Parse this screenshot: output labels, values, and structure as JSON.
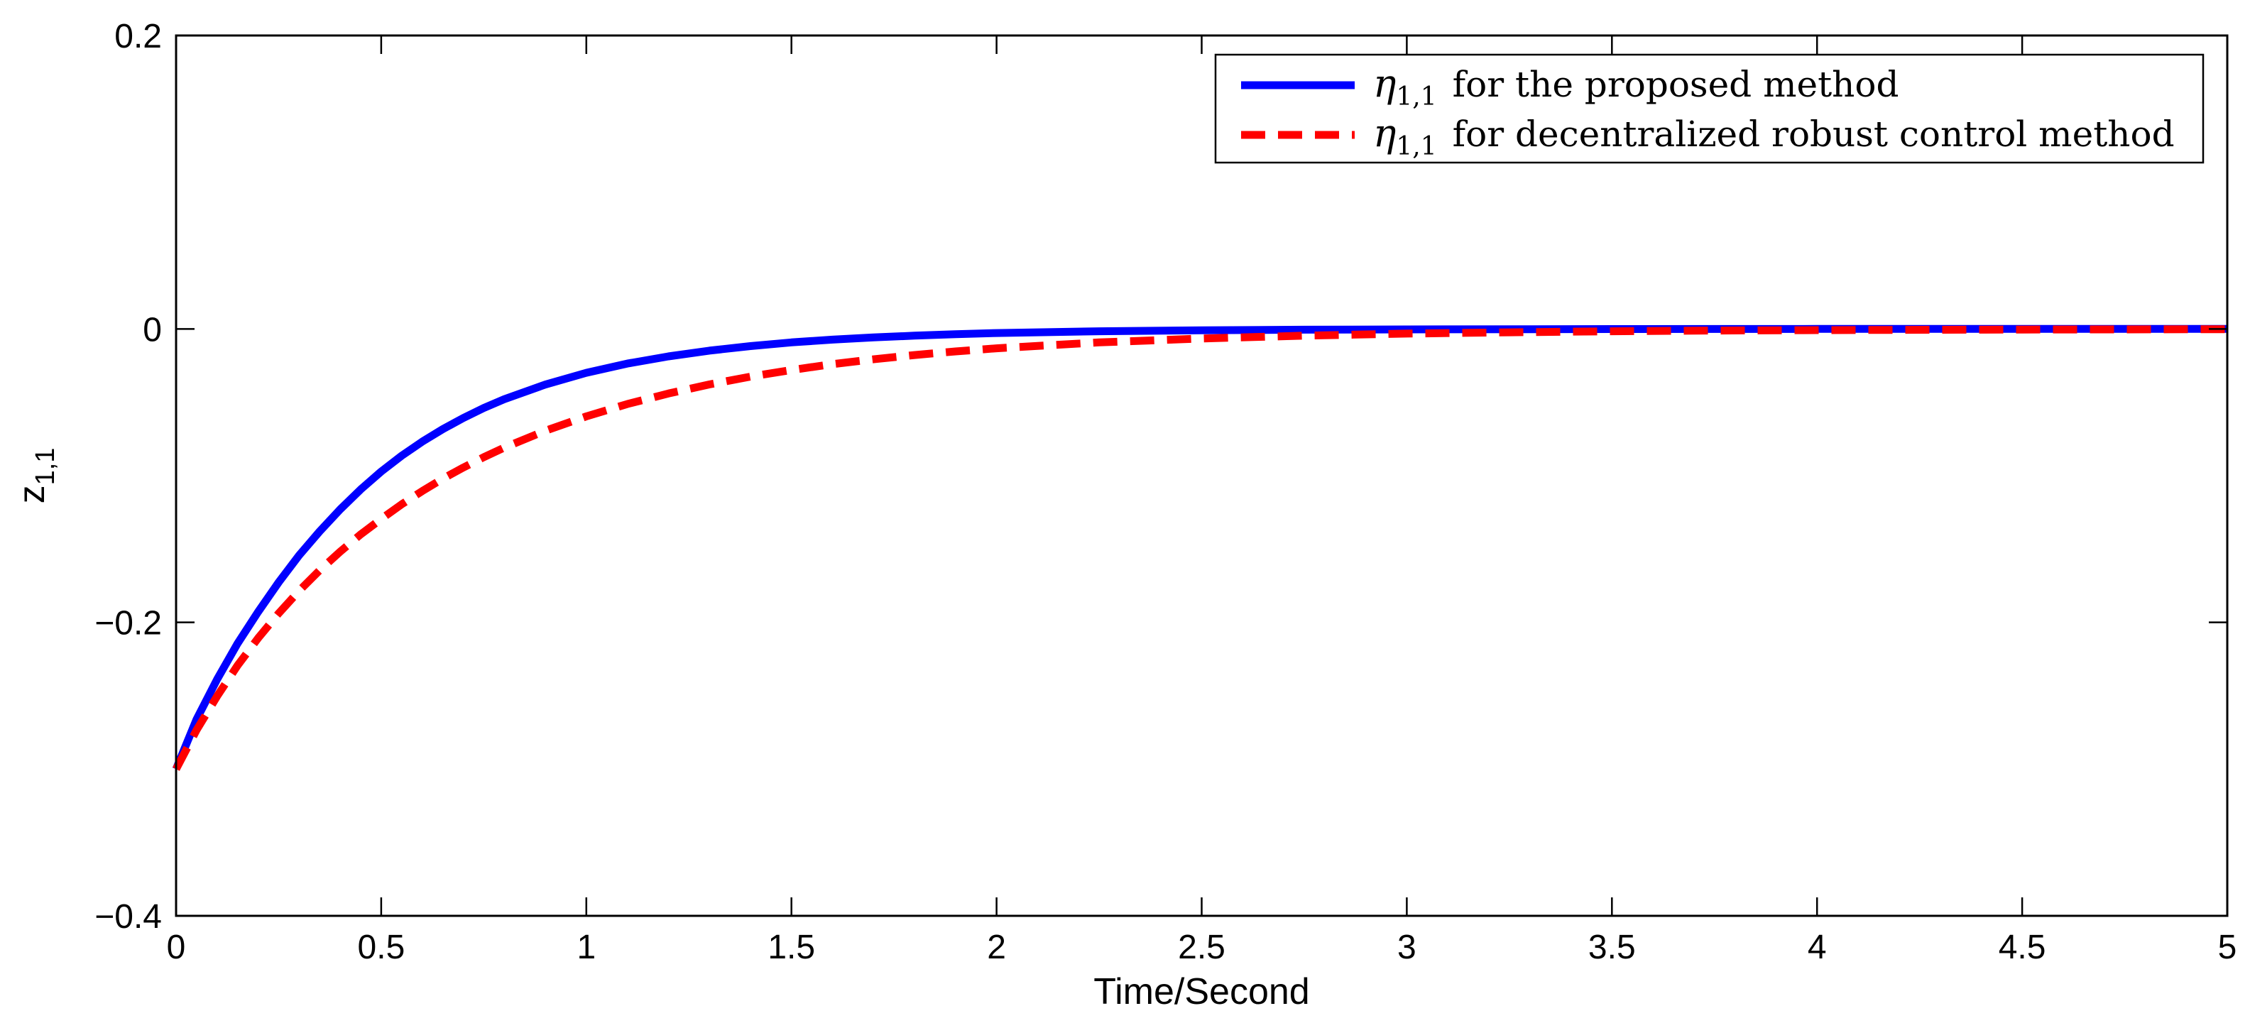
{
  "chart_data": {
    "type": "line",
    "title": "",
    "xlabel": "Time/Second",
    "ylabel_main": "z",
    "ylabel_sub": "1,1",
    "xlim": [
      0,
      5
    ],
    "ylim": [
      -0.4,
      0.2
    ],
    "xticks": [
      0,
      0.5,
      1,
      1.5,
      2,
      2.5,
      3,
      3.5,
      4,
      4.5,
      5
    ],
    "xtick_labels": [
      "0",
      "0.5",
      "1",
      "1.5",
      "2",
      "2.5",
      "3",
      "3.5",
      "4",
      "4.5",
      "5"
    ],
    "yticks": [
      -0.4,
      -0.2,
      0,
      0.2
    ],
    "ytick_labels": [
      "−0.4",
      "−0.2",
      "0",
      "0.2"
    ],
    "grid": false,
    "legend_position": "top-right",
    "series": [
      {
        "name": "η_{1,1} for the proposed method",
        "legend_symbol": "η",
        "legend_sub": "1,1",
        "legend_text": "for the proposed method",
        "color": "#0000ff",
        "style": "solid",
        "x": [
          0,
          0.05,
          0.1,
          0.15,
          0.2,
          0.25,
          0.3,
          0.35,
          0.4,
          0.45,
          0.5,
          0.55,
          0.6,
          0.65,
          0.7,
          0.75,
          0.8,
          0.9,
          1.0,
          1.1,
          1.2,
          1.3,
          1.4,
          1.5,
          1.6,
          1.7,
          1.8,
          1.9,
          2.0,
          2.25,
          2.5,
          2.75,
          3.0,
          3.5,
          4.0,
          4.5,
          5.0
        ],
        "y": [
          -0.3,
          -0.266,
          -0.2388,
          -0.2143,
          -0.1928,
          -0.1727,
          -0.1543,
          -0.138,
          -0.123,
          -0.1094,
          -0.0972,
          -0.0864,
          -0.0768,
          -0.0683,
          -0.0607,
          -0.0539,
          -0.0479,
          -0.0379,
          -0.0299,
          -0.0236,
          -0.0187,
          -0.0148,
          -0.0117,
          -0.0092,
          -0.0073,
          -0.0058,
          -0.0046,
          -0.0036,
          -0.0028,
          -0.0016,
          -0.0009,
          -0.0005,
          -0.0003,
          -0.0001,
          0,
          0,
          0
        ]
      },
      {
        "name": "η_{1,1} for decentralized robust control method",
        "legend_symbol": "η",
        "legend_sub": "1,1",
        "legend_text": "for decentralized robust control method",
        "color": "#ff0000",
        "style": "dashed",
        "x": [
          0,
          0.05,
          0.1,
          0.15,
          0.2,
          0.25,
          0.3,
          0.35,
          0.4,
          0.45,
          0.5,
          0.55,
          0.6,
          0.65,
          0.7,
          0.75,
          0.8,
          0.9,
          1.0,
          1.1,
          1.2,
          1.3,
          1.4,
          1.5,
          1.6,
          1.7,
          1.8,
          1.9,
          2.0,
          2.25,
          2.5,
          2.75,
          3.0,
          3.25,
          3.5,
          3.75,
          4.0,
          4.5,
          5.0
        ],
        "y": [
          -0.3,
          -0.2733,
          -0.2503,
          -0.2293,
          -0.2107,
          -0.1938,
          -0.1785,
          -0.1645,
          -0.1518,
          -0.14,
          -0.1295,
          -0.1195,
          -0.1105,
          -0.1021,
          -0.0945,
          -0.0874,
          -0.0809,
          -0.0694,
          -0.0596,
          -0.0512,
          -0.044,
          -0.0378,
          -0.0325,
          -0.028,
          -0.024,
          -0.0207,
          -0.0178,
          -0.0153,
          -0.0132,
          -0.0092,
          -0.0065,
          -0.0046,
          -0.0032,
          -0.0023,
          -0.0016,
          -0.0011,
          -0.0008,
          -0.0004,
          -0.0002
        ]
      }
    ]
  }
}
